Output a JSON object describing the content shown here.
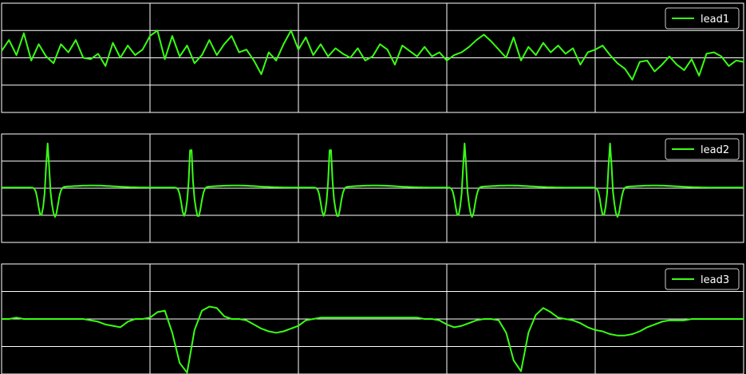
{
  "theme": {
    "background": "#000000",
    "grid": "#ffffff",
    "trace": "#39ff14",
    "legend_border": "#cccccc"
  },
  "chart_data": [
    {
      "type": "line",
      "title": "",
      "xlabel": "",
      "ylabel": "",
      "grid": true,
      "legend_position": "top-right",
      "xlim": [
        0,
        1000
      ],
      "ylim": [
        -4,
        4
      ],
      "series": [
        {
          "name": "lead1",
          "x": [
            0,
            10,
            20,
            30,
            40,
            50,
            60,
            70,
            80,
            90,
            100,
            110,
            120,
            130,
            140,
            150,
            160,
            170,
            180,
            190,
            200,
            210,
            220,
            230,
            240,
            250,
            260,
            270,
            280,
            290,
            300,
            310,
            320,
            330,
            340,
            350,
            360,
            370,
            380,
            390,
            400,
            410,
            420,
            430,
            440,
            450,
            460,
            470,
            480,
            490,
            500,
            510,
            520,
            530,
            540,
            550,
            560,
            570,
            580,
            590,
            600,
            610,
            620,
            630,
            640,
            650,
            660,
            670,
            680,
            690,
            700,
            710,
            720,
            730,
            740,
            750,
            760,
            770,
            780,
            790,
            800,
            810,
            820,
            830,
            840,
            850,
            860,
            870,
            880,
            890,
            900,
            910,
            920,
            930,
            940,
            950,
            960,
            970,
            980,
            990,
            1000
          ],
          "values": [
            0.5,
            1.3,
            0.2,
            1.8,
            -0.2,
            1.0,
            0.1,
            -0.4,
            1.0,
            0.4,
            1.3,
            0.0,
            -0.1,
            0.3,
            -0.6,
            1.1,
            0.0,
            0.9,
            0.2,
            0.6,
            1.6,
            2.0,
            -0.1,
            1.6,
            0.1,
            0.9,
            -0.4,
            0.2,
            1.3,
            0.2,
            1.0,
            1.6,
            0.4,
            0.6,
            -0.2,
            -1.2,
            0.4,
            -0.2,
            1.0,
            2.0,
            0.6,
            1.5,
            0.2,
            1.0,
            0.1,
            0.7,
            0.3,
            0.0,
            0.7,
            -0.2,
            0.1,
            1.0,
            0.6,
            -0.5,
            0.9,
            0.5,
            0.1,
            0.8,
            0.1,
            0.4,
            -0.2,
            0.2,
            0.4,
            0.8,
            1.3,
            1.7,
            1.2,
            0.6,
            0.0,
            1.5,
            -0.2,
            0.8,
            0.2,
            1.1,
            0.4,
            0.9,
            0.3,
            0.7,
            -0.5,
            0.4,
            0.6,
            0.9,
            0.2,
            -0.4,
            -0.8,
            -1.6,
            -0.3,
            -0.2,
            -1.0,
            -0.5,
            0.1,
            -0.5,
            -0.9,
            -0.1,
            -1.3,
            0.3,
            0.4,
            0.1,
            -0.6,
            -0.2,
            -0.3
          ]
        }
      ]
    },
    {
      "type": "line",
      "title": "",
      "xlabel": "",
      "ylabel": "",
      "grid": true,
      "legend_position": "top-right",
      "xlim": [
        0,
        1000
      ],
      "ylim": [
        -4,
        4
      ],
      "series": [
        {
          "name": "lead2",
          "beats": [
            62,
            255,
            443,
            624,
            820
          ],
          "values_note": "",
          "x": [],
          "values": []
        }
      ]
    },
    {
      "type": "line",
      "title": "",
      "xlabel": "",
      "ylabel": "",
      "grid": true,
      "legend_position": "top-right",
      "xlim": [
        0,
        1000
      ],
      "ylim": [
        -4,
        4
      ],
      "series": [
        {
          "name": "lead3",
          "x": [
            0,
            10,
            20,
            30,
            40,
            50,
            60,
            70,
            80,
            90,
            100,
            110,
            120,
            130,
            140,
            150,
            160,
            170,
            180,
            190,
            200,
            210,
            220,
            230,
            240,
            250,
            260,
            270,
            280,
            290,
            300,
            310,
            320,
            330,
            340,
            350,
            360,
            370,
            380,
            390,
            400,
            410,
            420,
            430,
            440,
            450,
            460,
            470,
            480,
            490,
            500,
            510,
            520,
            530,
            540,
            550,
            560,
            570,
            580,
            590,
            600,
            610,
            620,
            630,
            640,
            650,
            660,
            670,
            680,
            690,
            700,
            710,
            720,
            730,
            740,
            750,
            760,
            770,
            780,
            790,
            800,
            810,
            820,
            830,
            840,
            850,
            860,
            870,
            880,
            890,
            900,
            910,
            920,
            930,
            940,
            950,
            960,
            970,
            980,
            990,
            1000
          ],
          "values": [
            0.0,
            0.0,
            0.1,
            0.0,
            0.0,
            0.0,
            0.0,
            0.0,
            0.0,
            0.0,
            0.0,
            0.0,
            -0.1,
            -0.2,
            -0.4,
            -0.5,
            -0.6,
            -0.2,
            0.0,
            0.0,
            0.1,
            0.5,
            0.6,
            -1.0,
            -3.2,
            -3.9,
            -0.8,
            0.6,
            0.9,
            0.8,
            0.2,
            0.0,
            0.0,
            -0.1,
            -0.4,
            -0.7,
            -0.9,
            -1.0,
            -0.9,
            -0.7,
            -0.5,
            -0.1,
            0.0,
            0.1,
            0.1,
            0.1,
            0.1,
            0.1,
            0.1,
            0.1,
            0.1,
            0.1,
            0.1,
            0.1,
            0.1,
            0.1,
            0.1,
            0.0,
            0.0,
            -0.1,
            -0.4,
            -0.6,
            -0.5,
            -0.3,
            -0.1,
            0.0,
            0.0,
            -0.1,
            -1.0,
            -3.0,
            -3.8,
            -1.0,
            0.3,
            0.8,
            0.5,
            0.1,
            0.0,
            -0.1,
            -0.3,
            -0.6,
            -0.8,
            -0.9,
            -1.1,
            -1.2,
            -1.2,
            -1.1,
            -0.9,
            -0.6,
            -0.4,
            -0.2,
            -0.1,
            -0.1,
            -0.1,
            0.0,
            0.0,
            0.0,
            0.0,
            0.0,
            0.0,
            0.0,
            0.0
          ]
        }
      ]
    }
  ]
}
